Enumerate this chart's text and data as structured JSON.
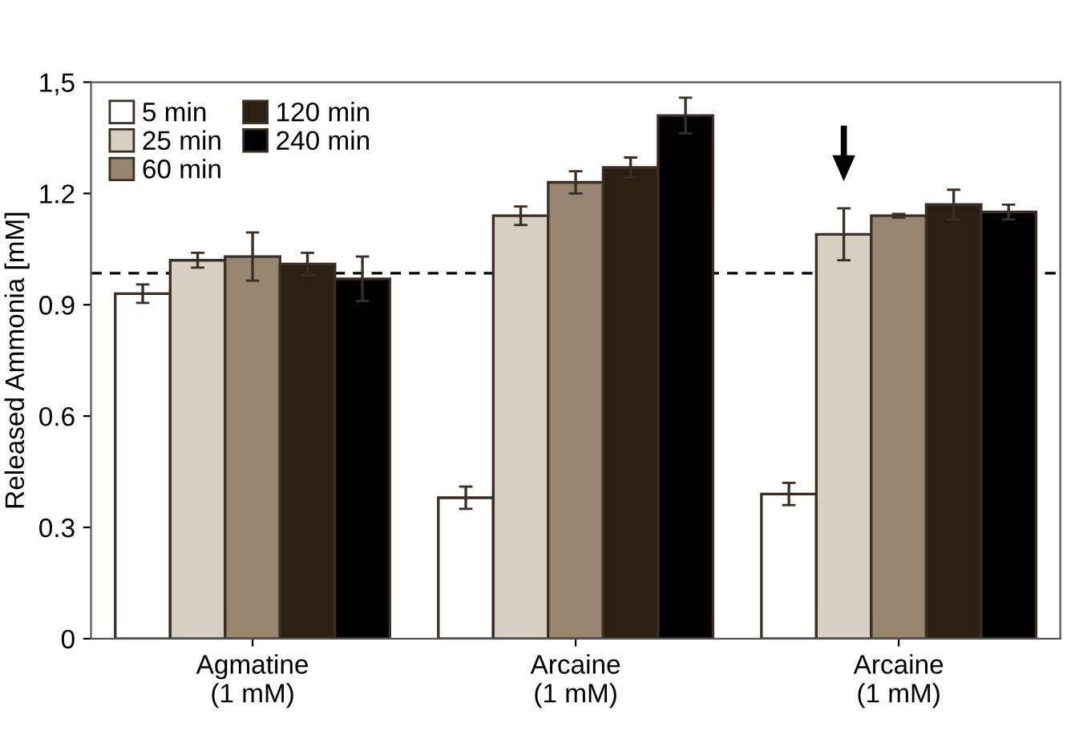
{
  "chart_data": {
    "type": "bar",
    "ylabel": "Released Ammonia [mM]",
    "categories": [
      "Agmatine\n(1 mM)",
      "Arcaine\n(1 mM)",
      "Arcaine\n(1 mM)"
    ],
    "series": [
      {
        "name": "5 min",
        "color": "#ffffff",
        "values": [
          0.93,
          0.38,
          0.39
        ],
        "errors": [
          0.025,
          0.03,
          0.03
        ]
      },
      {
        "name": "25 min",
        "color": "#d8cfc4",
        "values": [
          1.02,
          1.14,
          1.09
        ],
        "errors": [
          0.02,
          0.025,
          0.07
        ]
      },
      {
        "name": "60 min",
        "color": "#968670",
        "values": [
          1.03,
          1.23,
          1.14
        ],
        "errors": [
          0.065,
          0.03,
          0.005
        ]
      },
      {
        "name": "120 min",
        "color": "#2c1f14",
        "values": [
          1.01,
          1.27,
          1.17
        ],
        "errors": [
          0.03,
          0.027,
          0.04
        ]
      },
      {
        "name": "240 min",
        "color": "#000000",
        "values": [
          0.97,
          1.41,
          1.15
        ],
        "errors": [
          0.06,
          0.048,
          0.02
        ]
      }
    ],
    "ylim": [
      0,
      1.5
    ],
    "yticks": [
      0,
      0.3,
      0.6,
      0.9,
      1.2,
      {
        "value": 1.5,
        "label": "1,5"
      }
    ],
    "ref_lines": [
      {
        "axis": "y",
        "value": 0.985,
        "color": "#000000",
        "line_style": "dashed"
      }
    ],
    "grid": false,
    "legend": "top left"
  }
}
